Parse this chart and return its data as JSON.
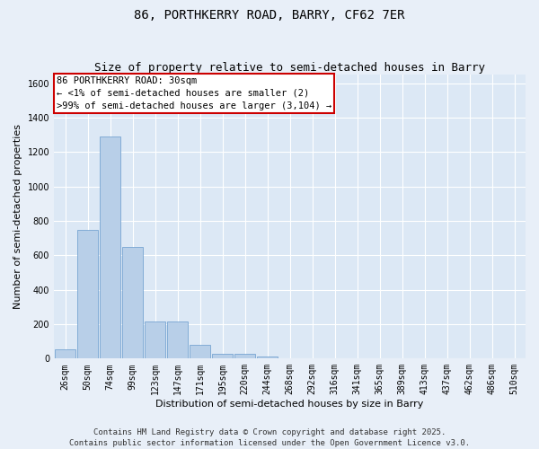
{
  "title1": "86, PORTHKERRY ROAD, BARRY, CF62 7ER",
  "title2": "Size of property relative to semi-detached houses in Barry",
  "xlabel": "Distribution of semi-detached houses by size in Barry",
  "ylabel": "Number of semi-detached properties",
  "bar_color": "#b8cfe8",
  "bar_edge_color": "#6699cc",
  "background_color": "#dce8f5",
  "fig_background_color": "#e8eff8",
  "annotation_box_color": "#cc0000",
  "annotation_text": "86 PORTHKERRY ROAD: 30sqm\n← <1% of semi-detached houses are smaller (2)\n>99% of semi-detached houses are larger (3,104) →",
  "categories": [
    "26sqm",
    "50sqm",
    "74sqm",
    "99sqm",
    "123sqm",
    "147sqm",
    "171sqm",
    "195sqm",
    "220sqm",
    "244sqm",
    "268sqm",
    "292sqm",
    "316sqm",
    "341sqm",
    "365sqm",
    "389sqm",
    "413sqm",
    "437sqm",
    "462sqm",
    "486sqm",
    "510sqm"
  ],
  "bar_heights": [
    55,
    750,
    1290,
    650,
    215,
    215,
    80,
    30,
    30,
    10,
    0,
    0,
    0,
    0,
    0,
    0,
    0,
    0,
    0,
    0,
    0
  ],
  "ylim": [
    0,
    1650
  ],
  "yticks": [
    0,
    200,
    400,
    600,
    800,
    1000,
    1200,
    1400,
    1600
  ],
  "footer_text": "Contains HM Land Registry data © Crown copyright and database right 2025.\nContains public sector information licensed under the Open Government Licence v3.0.",
  "title1_fontsize": 10,
  "title2_fontsize": 9,
  "annotation_fontsize": 7.5,
  "footer_fontsize": 6.5,
  "ylabel_fontsize": 8,
  "xlabel_fontsize": 8,
  "tick_fontsize": 7
}
